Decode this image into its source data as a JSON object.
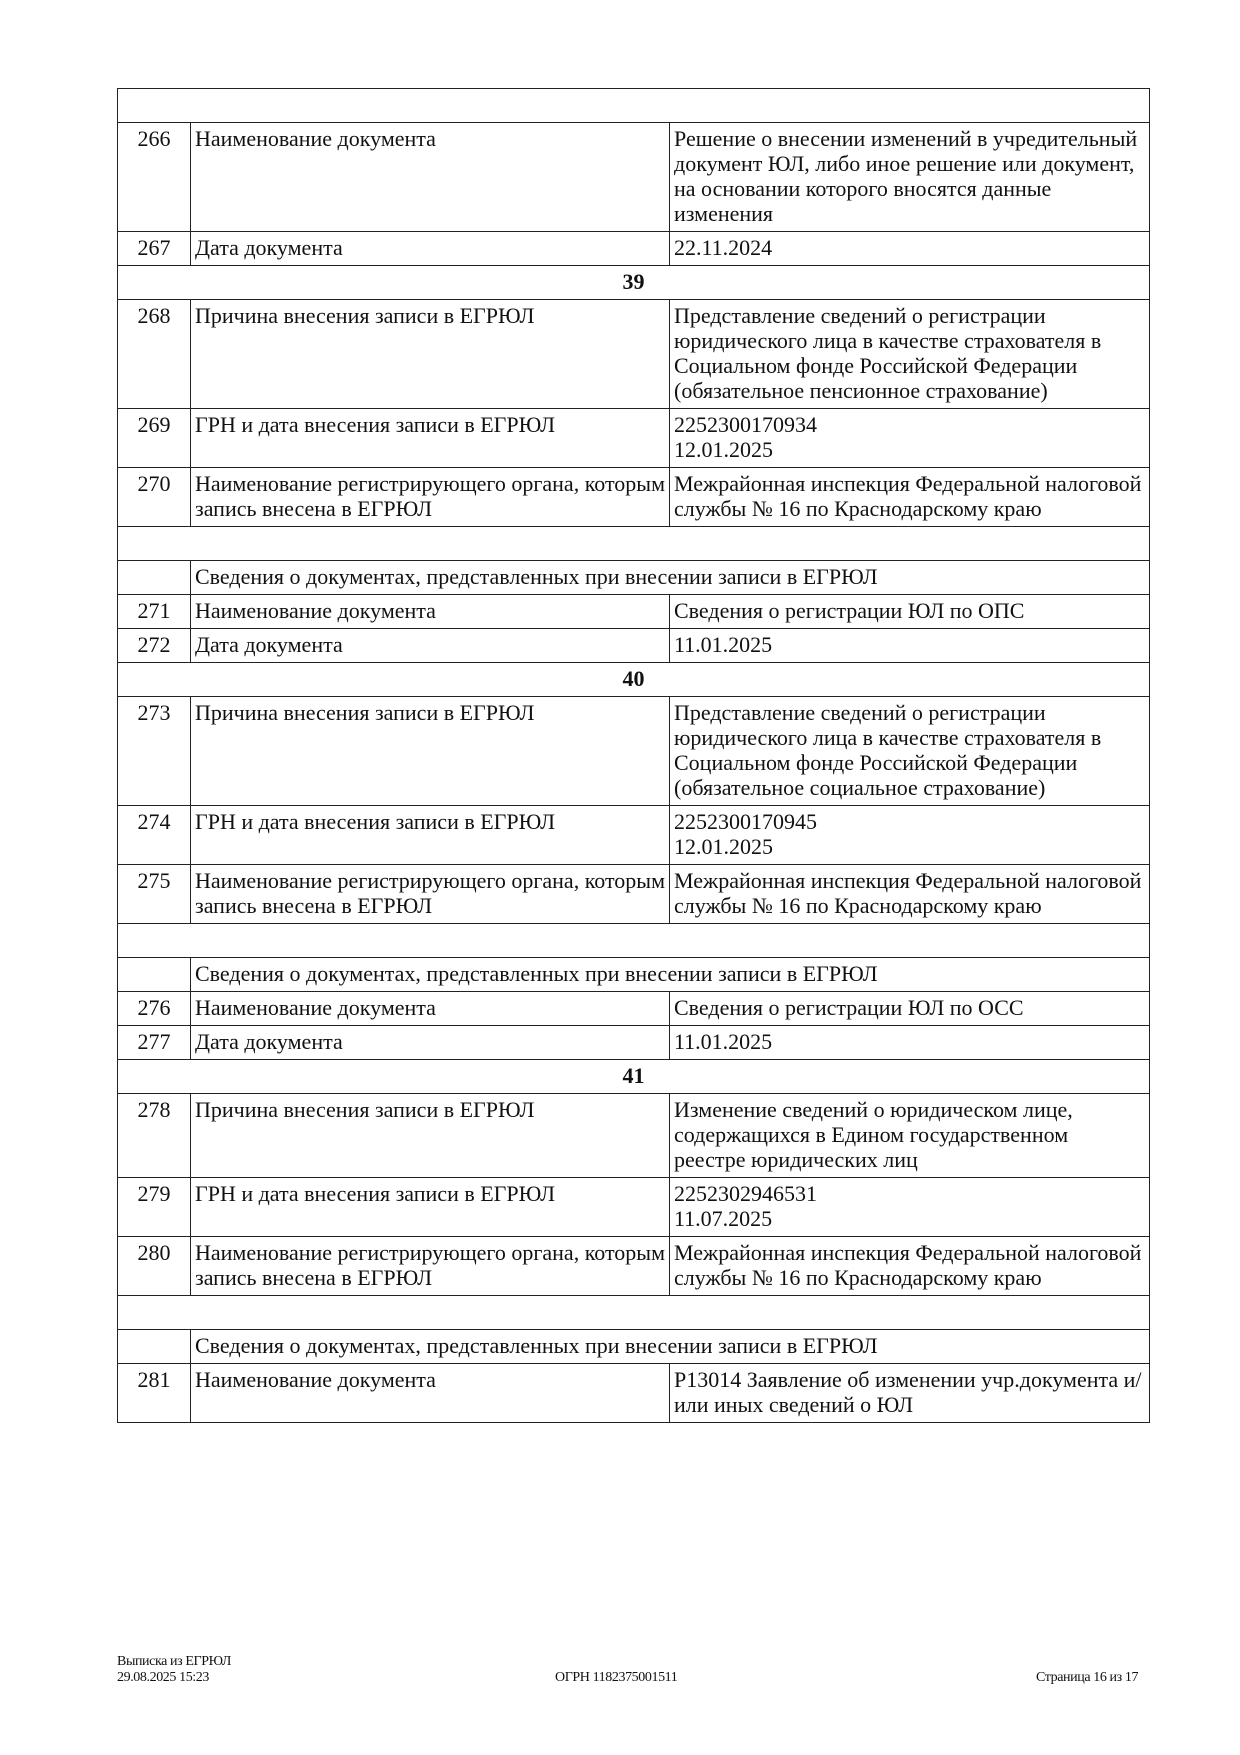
{
  "rows": [
    {
      "type": "empty"
    },
    {
      "type": "row",
      "num": "266",
      "label": "Наименование документа",
      "value": "Решение о внесении изменений в учредительный документ ЮЛ, либо иное решение или документ, на основании которого вносятся данные изменения"
    },
    {
      "type": "row",
      "num": "267",
      "label": "Дата документа",
      "value": "22.11.2024"
    },
    {
      "type": "section",
      "text": "39"
    },
    {
      "type": "row",
      "num": "268",
      "label": "Причина внесения записи в ЕГРЮЛ",
      "value": "Представление сведений о регистрации юридического лица в качестве страхователя в Социальном фонде Российской Федерации (обязательное пенсионное страхование)"
    },
    {
      "type": "row",
      "num": "269",
      "label": "ГРН и дата внесения записи в ЕГРЮЛ",
      "value": "2252300170934",
      "value2": "12.01.2025"
    },
    {
      "type": "row",
      "num": "270",
      "label": "Наименование регистрирующего органа, которым запись внесена в ЕГРЮЛ",
      "value": "Межрайонная инспекция Федеральной налоговой службы № 16 по Краснодарскому краю"
    },
    {
      "type": "empty"
    },
    {
      "type": "header",
      "text": "Сведения о документах, представленных при внесении записи в ЕГРЮЛ"
    },
    {
      "type": "row",
      "num": "271",
      "label": "Наименование документа",
      "value": "Сведения о регистрации ЮЛ по ОПС"
    },
    {
      "type": "row",
      "num": "272",
      "label": "Дата документа",
      "value": "11.01.2025"
    },
    {
      "type": "section",
      "text": "40"
    },
    {
      "type": "row",
      "num": "273",
      "label": "Причина внесения записи в ЕГРЮЛ",
      "value": "Представление сведений о регистрации юридического лица в качестве страхователя в Социальном фонде Российской Федерации (обязательное социальное страхование)"
    },
    {
      "type": "row",
      "num": "274",
      "label": "ГРН и дата внесения записи в ЕГРЮЛ",
      "value": "2252300170945",
      "value2": "12.01.2025"
    },
    {
      "type": "row",
      "num": "275",
      "label": "Наименование регистрирующего органа, которым запись внесена в ЕГРЮЛ",
      "value": "Межрайонная инспекция Федеральной налоговой службы № 16 по Краснодарскому краю"
    },
    {
      "type": "empty"
    },
    {
      "type": "header",
      "text": "Сведения о документах, представленных при внесении записи в ЕГРЮЛ"
    },
    {
      "type": "row",
      "num": "276",
      "label": "Наименование документа",
      "value": "Сведения о регистрации ЮЛ по ОСС"
    },
    {
      "type": "row",
      "num": "277",
      "label": "Дата документа",
      "value": "11.01.2025"
    },
    {
      "type": "section",
      "text": "41"
    },
    {
      "type": "row",
      "num": "278",
      "label": "Причина внесения записи в ЕГРЮЛ",
      "value": "Изменение сведений о юридическом лице, содержащихся в Едином государственном реестре юридических лиц"
    },
    {
      "type": "row",
      "num": "279",
      "label": "ГРН и дата внесения записи в ЕГРЮЛ",
      "value": "2252302946531",
      "value2": "11.07.2025"
    },
    {
      "type": "row",
      "num": "280",
      "label": "Наименование регистрирующего органа, которым запись внесена в ЕГРЮЛ",
      "value": "Межрайонная инспекция Федеральной налоговой службы № 16 по Краснодарскому краю"
    },
    {
      "type": "empty"
    },
    {
      "type": "header",
      "text": "Сведения о документах, представленных при внесении записи в ЕГРЮЛ"
    },
    {
      "type": "row",
      "num": "281",
      "label": "Наименование документа",
      "value": "Р13014 Заявление об изменении учр.документа и/или иных сведений о ЮЛ"
    }
  ],
  "footer": {
    "title": "Выписка из ЕГРЮЛ",
    "datetime": "29.08.2025 15:23",
    "ogrn": "ОГРН 1182375001511",
    "page": "Страница 16 из 17"
  }
}
